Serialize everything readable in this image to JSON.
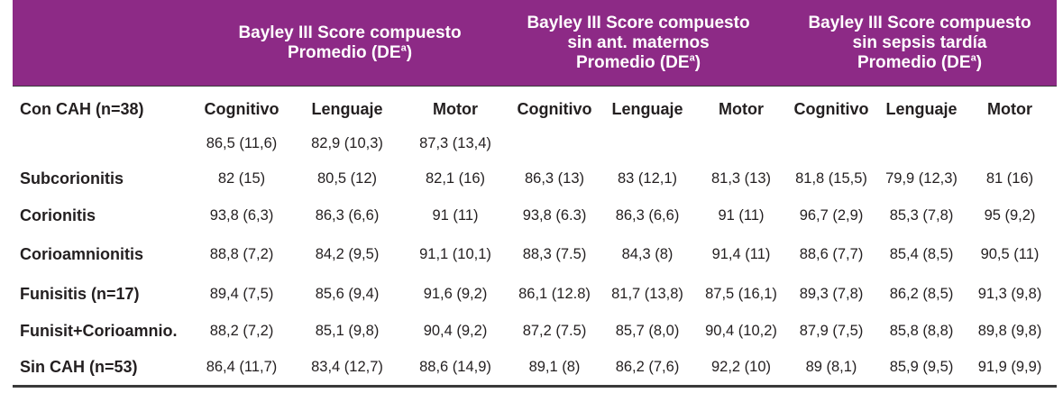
{
  "table": {
    "groups": [
      {
        "lines": [
          "Bayley III Score compuesto",
          "Promedio (DE"
        ],
        "sup": "a",
        "close": ")"
      },
      {
        "lines": [
          "Bayley III Score compuesto",
          "sin ant. maternos",
          "Promedio (DE"
        ],
        "sup": "a",
        "close": ")"
      },
      {
        "lines": [
          "Bayley III Score compuesto",
          "sin sepsis tardía",
          "Promedio (DE"
        ],
        "sup": "a",
        "close": ")"
      }
    ],
    "col_headers": [
      "Cognitivo",
      "Lenguaje",
      "Motor",
      "Cognitivo",
      "Lenguaje",
      "Motor",
      "Cognitivo",
      "Lenguaje",
      "Motor"
    ],
    "row_header_label": "Con CAH (n=38)",
    "rows": [
      {
        "label": "",
        "values": [
          "86,5 (11,6)",
          "82,9 (10,3)",
          "87,3 (13,4)",
          "",
          "",
          "",
          "",
          "",
          ""
        ]
      },
      {
        "label": "Subcorionitis",
        "values": [
          "82 (15)",
          "80,5 (12)",
          "82,1 (16)",
          "86,3 (13)",
          "83 (12,1)",
          "81,3 (13)",
          "81,8 (15,5)",
          "79,9 (12,3)",
          "81 (16)"
        ]
      },
      {
        "label": "Corionitis",
        "values": [
          "93,8 (6,3)",
          "86,3 (6,6)",
          "91 (11)",
          "93,8 (6.3)",
          "86,3 (6,6)",
          "91 (11)",
          "96,7 (2,9)",
          "85,3 (7,8)",
          "95 (9,2)"
        ]
      },
      {
        "label": "Corioamnionitis",
        "values": [
          "88,8 (7,2)",
          "84,2 (9,5)",
          "91,1 (10,1)",
          "88,3 (7.5)",
          "84,3 (8)",
          "91,4 (11)",
          "88,6 (7,7)",
          "85,4 (8,5)",
          "90,5 (11)"
        ]
      },
      {
        "label": "Funisitis (n=17)",
        "values": [
          "89,4 (7,5)",
          "85,6 (9,4)",
          "91,6 (9,2)",
          "86,1 (12.8)",
          "81,7 (13,8)",
          "87,5 (16,1)",
          "89,3 (7,8)",
          "86,2 (8,5)",
          "91,3 (9,8)"
        ]
      },
      {
        "label": "Funisit+Corioamnio.",
        "values": [
          "88,2 (7,2)",
          "85,1 (9,8)",
          "90,4 (9,2)",
          "87,2 (7.5)",
          "85,7 (8,0)",
          "90,4 (10,2)",
          "87,9 (7,5)",
          "85,8 (8,8)",
          "89,8 (9,8)"
        ]
      },
      {
        "label": "Sin CAH (n=53)",
        "values": [
          "86,4 (11,7)",
          "83,4 (12,7)",
          "88,6 (14,9)",
          "89,1 (8)",
          "86,2 (7,6)",
          "92,2 (10)",
          "89 (8,1)",
          "85,9 (9,5)",
          "91,9 (9,9)"
        ]
      }
    ]
  }
}
